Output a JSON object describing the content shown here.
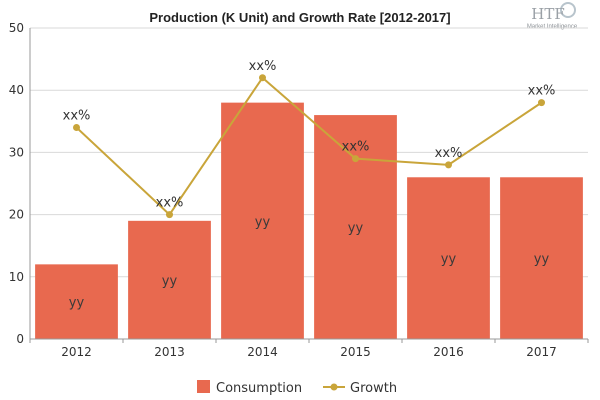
{
  "logo": {
    "text": "HTF",
    "subtitle": "Market Intelligence"
  },
  "chart_data": {
    "type": "bar",
    "title": "Production (K Unit) and Growth Rate [2012-2017]",
    "categories": [
      "2012",
      "2013",
      "2014",
      "2015",
      "2016",
      "2017"
    ],
    "ylim": [
      0,
      50
    ],
    "yticks": [
      0,
      10,
      20,
      30,
      40,
      50
    ],
    "xlabel": "",
    "ylabel": "",
    "grid": true,
    "legend": "bottom",
    "series": [
      {
        "name": "Consumption",
        "kind": "bar",
        "color": "#e8694f",
        "values": [
          12,
          19,
          38,
          36,
          26,
          26
        ],
        "labels": [
          "yy",
          "yy",
          "yy",
          "yy",
          "yy",
          "yy"
        ]
      },
      {
        "name": "Growth",
        "kind": "line",
        "color": "#c9a53a",
        "values": [
          34,
          20,
          42,
          29,
          28,
          38
        ],
        "labels": [
          "xx%",
          "xx%",
          "xx%",
          "xx%",
          "xx%",
          "xx%"
        ]
      }
    ]
  }
}
